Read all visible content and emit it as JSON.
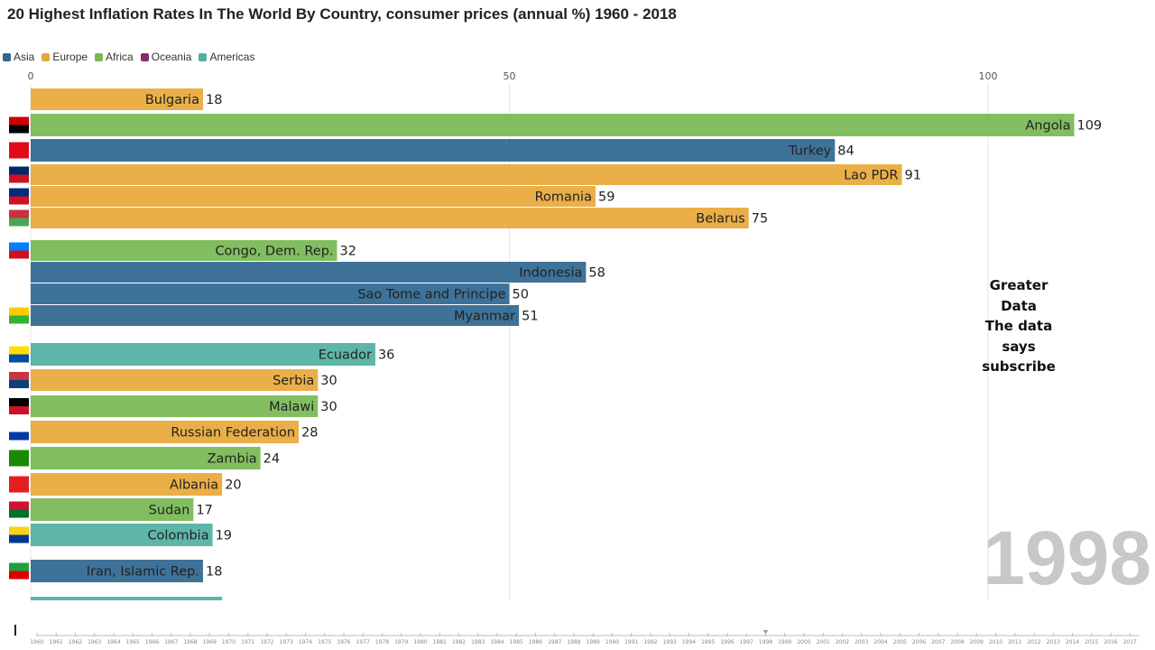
{
  "chart_data": {
    "type": "bar",
    "title": "20 Highest Inflation Rates In The World By Country, consumer prices (annual %) 1960 - 2018",
    "xlim": [
      0,
      113
    ],
    "xticks": [
      0,
      50,
      100
    ],
    "grid": true,
    "legend_position": "top-left",
    "legend": [
      {
        "name": "Asia",
        "color": "#2f6690"
      },
      {
        "name": "Europe",
        "color": "#e8a838"
      },
      {
        "name": "Africa",
        "color": "#77b852"
      },
      {
        "name": "Oceania",
        "color": "#8b2a6b"
      },
      {
        "name": "Americas",
        "color": "#4fb0a0"
      }
    ],
    "bars": [
      {
        "label": "Bulgaria",
        "value": 18,
        "region": "Europe"
      },
      {
        "label": "Angola",
        "value": 109,
        "region": "Africa"
      },
      {
        "label": "Turkey",
        "value": 84,
        "region": "Asia"
      },
      {
        "label": "Lao PDR",
        "value": 91,
        "region": "Europe"
      },
      {
        "label": "Romania",
        "value": 59,
        "region": "Europe"
      },
      {
        "label": "Belarus",
        "value": 75,
        "region": "Europe"
      },
      {
        "label": "Congo, Dem. Rep.",
        "value": 32,
        "region": "Africa"
      },
      {
        "label": "Sao Tome and Principe",
        "value": 50,
        "region": "Asia"
      },
      {
        "label": "Indonesia",
        "value": 58,
        "region": "Asia"
      },
      {
        "label": "Myanmar",
        "value": 51,
        "region": "Asia"
      },
      {
        "label": "Ecuador",
        "value": 36,
        "region": "Americas"
      },
      {
        "label": "Serbia",
        "value": 30,
        "region": "Europe"
      },
      {
        "label": "Malawi",
        "value": 30,
        "region": "Africa"
      },
      {
        "label": "Russian Federation",
        "value": 28,
        "region": "Europe"
      },
      {
        "label": "Zambia",
        "value": 24,
        "region": "Africa"
      },
      {
        "label": "Albania",
        "value": 20,
        "region": "Europe"
      },
      {
        "label": "Sudan",
        "value": 17,
        "region": "Africa"
      },
      {
        "label": "Colombia",
        "value": 19,
        "region": "Americas"
      },
      {
        "label": "Iran, Islamic Rep.",
        "value": 18,
        "region": "Asia"
      },
      {
        "label": "",
        "value": 20,
        "region": "Americas"
      }
    ],
    "timeline": {
      "start": 1960,
      "end": 2017,
      "current": 1998
    }
  },
  "watermark": {
    "lines": [
      "Greater",
      "Data",
      "The data",
      "says",
      "subscribe"
    ]
  },
  "year_label": "1998"
}
